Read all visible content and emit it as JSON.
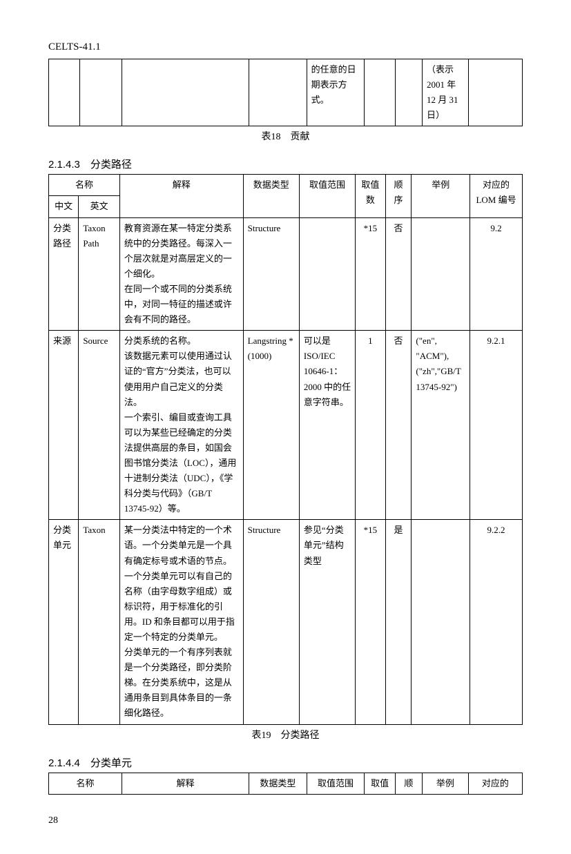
{
  "doc_id": "CELTS-41.1",
  "page_number": "28",
  "table18": {
    "caption": "表18　贡献",
    "fragment_row": {
      "c5": "的任意的日期表示方式。",
      "c8": "（表示2001 年12 月 31日）"
    }
  },
  "section_2143": {
    "heading": "2.1.4.3　分类路径",
    "caption": "表19　分类路径",
    "headers": {
      "name": "名称",
      "name_zh": "中文",
      "name_en": "英文",
      "explain": "解释",
      "datatype": "数据类型",
      "range": "取值范围",
      "count": "取值数",
      "order": "顺序",
      "example": "举例",
      "lom": "对应的LOM 编号"
    },
    "rows": [
      {
        "zh": "分类路径",
        "en": "Taxon Path",
        "explain": "教育资源在某一特定分类系统中的分类路径。每深入一个层次就是对高层定义的一个细化。\n在同一个或不同的分类系统中，对同一特征的描述或许会有不同的路径。",
        "datatype": "Structure",
        "range": "",
        "count": "*15",
        "order": "否",
        "example": "",
        "lom": "9.2"
      },
      {
        "zh": "来源",
        "en": "Source",
        "explain": "分类系统的名称。\n该数据元素可以使用通过认证的“官方”分类法，也可以使用用户自己定义的分类法。\n一个索引、编目或查询工具可以为某些已经确定的分类法提供高层的条目，如国会图书馆分类法（LOC），通用十进制分类法（UDC），《学科分类与代码》（GB/T 13745-92）等。",
        "datatype": "Langstring *(1000)",
        "range": "可以是ISO/IEC 10646-1：2000 中的任意字符串。",
        "count": "1",
        "order": "否",
        "example": "(\"en\", \"ACM\"),(\"zh\",\"GB/T 13745-92\")",
        "lom": "9.2.1"
      },
      {
        "zh": "分类单元",
        "en": "Taxon",
        "explain": "某一分类法中特定的一个术语。一个分类单元是一个具有确定标号或术语的节点。一个分类单元可以有自己的名称（由字母数字组成）或标识符，用于标准化的引用。ID 和条目都可以用于指定一个特定的分类单元。\n分类单元的一个有序列表就是一个分类路径，即分类阶梯。在分类系统中，这是从通用条目到具体条目的一条细化路径。",
        "datatype": "Structure",
        "range": "参见“分类单元”结构类型",
        "count": "*15",
        "order": "是",
        "example": "",
        "lom": "9.2.2"
      }
    ]
  },
  "section_2144": {
    "heading": "2.1.4.4　分类单元",
    "headers": {
      "name": "名称",
      "explain": "解释",
      "datatype": "数据类型",
      "range": "取值范围",
      "count": "取值",
      "order": "顺",
      "example": "举例",
      "lom": "对应的"
    }
  }
}
